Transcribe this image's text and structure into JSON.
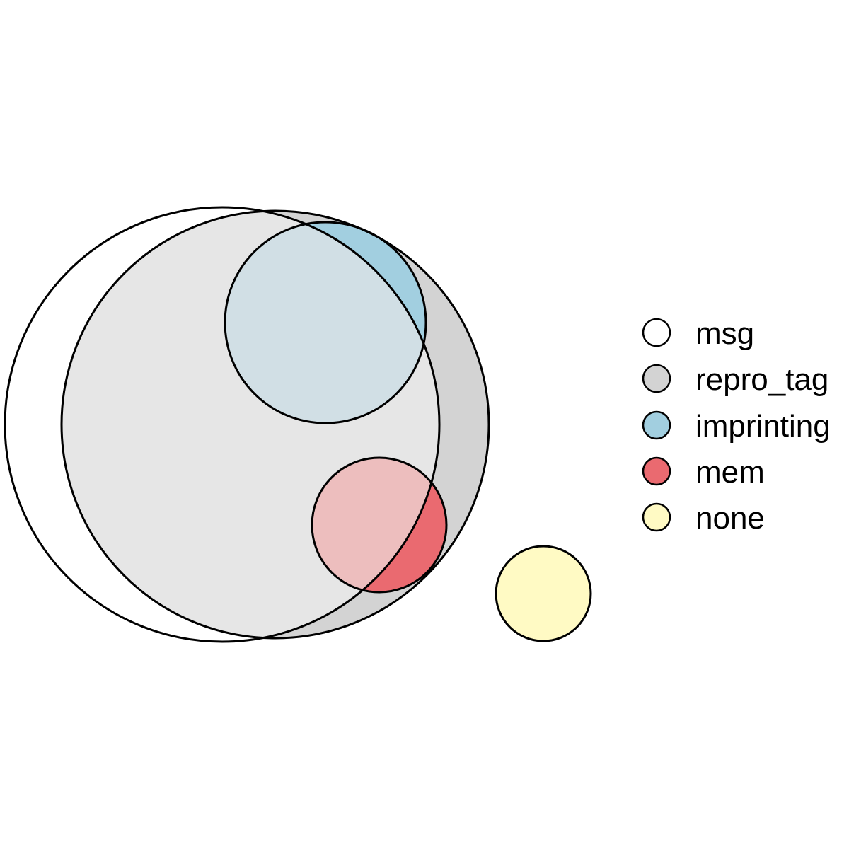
{
  "diagram": {
    "type": "euler",
    "sets": [
      {
        "name": "msg",
        "color": "#FFFFFF"
      },
      {
        "name": "repro_tag",
        "color": "#D3D3D3"
      },
      {
        "name": "imprinting",
        "color": "#A2CFE0"
      },
      {
        "name": "mem",
        "color": "#EA6A70"
      },
      {
        "name": "none",
        "color": "#FFFAC4"
      }
    ],
    "overlap_colors": {
      "msg_repro_tag": "#E6E6E6",
      "msg_repro_tag_imprinting": "#D1DFE5",
      "msg_repro_tag_mem": "#EDBEBE"
    },
    "outline_color": "#000000"
  }
}
